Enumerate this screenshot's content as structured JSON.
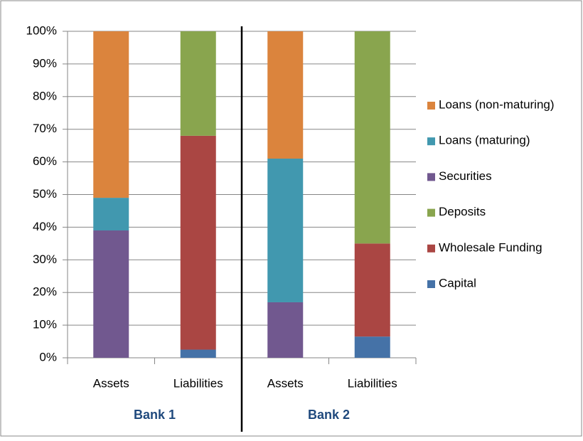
{
  "chart_data": {
    "type": "stacked-bar",
    "categories": [
      "Assets",
      "Liabilities",
      "Assets",
      "Liabilities"
    ],
    "groups": [
      "Bank 1",
      "Bank 2"
    ],
    "series": [
      {
        "name": "Capital",
        "color": "#4572a7",
        "values": [
          null,
          2.5,
          null,
          6.5
        ]
      },
      {
        "name": "Wholesale Funding",
        "color": "#aa4643",
        "values": [
          null,
          65.5,
          null,
          28.5
        ]
      },
      {
        "name": "Deposits",
        "color": "#89a54e",
        "values": [
          null,
          32,
          null,
          65
        ]
      },
      {
        "name": "Securities",
        "color": "#71588f",
        "values": [
          39,
          null,
          17,
          null
        ]
      },
      {
        "name": "Loans (maturing)",
        "color": "#4198af",
        "values": [
          10,
          null,
          44,
          null
        ]
      },
      {
        "name": "Loans (non-maturing)",
        "color": "#db843d",
        "values": [
          51,
          null,
          39,
          null
        ]
      }
    ],
    "ylim": [
      0,
      100
    ],
    "yticks": [
      {
        "value": 0,
        "label": "0%"
      },
      {
        "value": 10,
        "label": "10%"
      },
      {
        "value": 20,
        "label": "20%"
      },
      {
        "value": 30,
        "label": "30%"
      },
      {
        "value": 40,
        "label": "40%"
      },
      {
        "value": 50,
        "label": "50%"
      },
      {
        "value": 60,
        "label": "60%"
      },
      {
        "value": 70,
        "label": "70%"
      },
      {
        "value": 80,
        "label": "80%"
      },
      {
        "value": 90,
        "label": "90%"
      },
      {
        "value": 100,
        "label": "100%"
      }
    ],
    "grid": true,
    "legend": "right"
  }
}
